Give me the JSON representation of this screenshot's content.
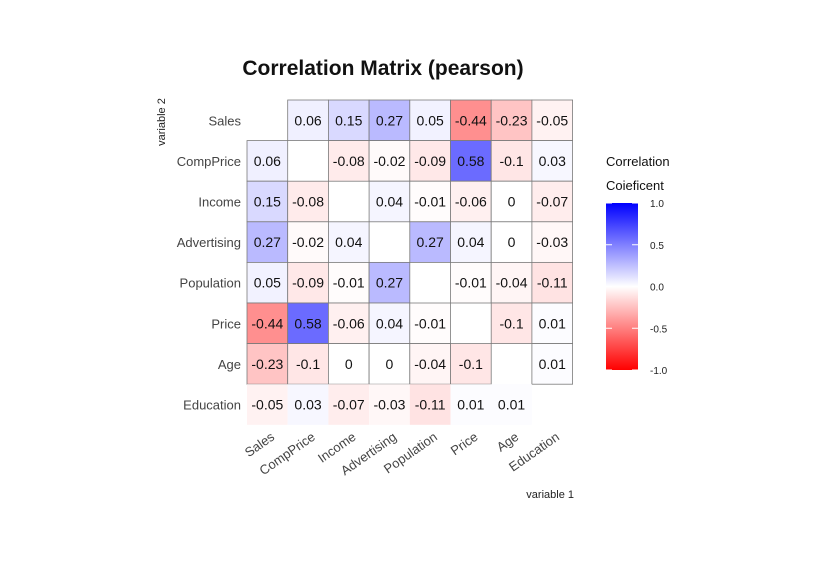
{
  "chart_data": {
    "type": "heatmap",
    "title": "Correlation Matrix (pearson)",
    "xlabel": "variable 1",
    "ylabel": "variable 2",
    "variables": [
      "Sales",
      "CompPrice",
      "Income",
      "Advertising",
      "Population",
      "Price",
      "Age",
      "Education"
    ],
    "values": [
      [
        null,
        0.06,
        0.15,
        0.27,
        0.05,
        -0.44,
        -0.23,
        -0.05
      ],
      [
        0.06,
        null,
        -0.08,
        -0.02,
        -0.09,
        0.58,
        -0.1,
        0.03
      ],
      [
        0.15,
        -0.08,
        null,
        0.04,
        -0.01,
        -0.06,
        0,
        -0.07
      ],
      [
        0.27,
        -0.02,
        0.04,
        null,
        0.27,
        0.04,
        0,
        -0.03
      ],
      [
        0.05,
        -0.09,
        -0.01,
        0.27,
        null,
        -0.01,
        -0.04,
        -0.11
      ],
      [
        -0.44,
        0.58,
        -0.06,
        0.04,
        -0.01,
        null,
        -0.1,
        0.01
      ],
      [
        -0.23,
        -0.1,
        0,
        0,
        -0.04,
        -0.1,
        null,
        0.01
      ],
      [
        -0.05,
        0.03,
        -0.07,
        -0.03,
        -0.11,
        0.01,
        0.01,
        null
      ]
    ],
    "legend": {
      "title_lines": [
        "Correlation",
        "Coieficent"
      ],
      "ticks": [
        "1.0",
        "0.5",
        "0.0",
        "-0.5",
        "-1.0"
      ],
      "tick_values": [
        1,
        0.5,
        0,
        -0.5,
        -1
      ],
      "range": [
        -1,
        1
      ],
      "placement": "right"
    },
    "colors": {
      "negative": "#ff0000",
      "zero": "#ffffff",
      "positive": "#0000ff"
    },
    "grid": false
  }
}
